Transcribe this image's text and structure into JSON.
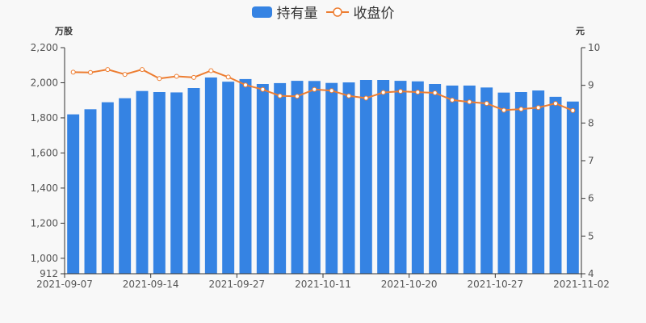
{
  "legend": {
    "bar_label": "持有量",
    "line_label": "收盘价"
  },
  "axes": {
    "left_title": "万股",
    "right_title": "元"
  },
  "colors": {
    "bar": "#3583e3",
    "line": "#ed7d31",
    "axis": "#333333",
    "background": "#f8f8f8"
  },
  "chart_data": {
    "type": "bar+line",
    "title": "",
    "xlabel": "",
    "ylabel_left": "万股",
    "ylabel_right": "元",
    "left_ylim": [
      912,
      2200
    ],
    "left_ticks": [
      912,
      1000,
      1200,
      1400,
      1600,
      1800,
      2000,
      2200
    ],
    "left_tick_labels": [
      "912",
      "1,000",
      "1,200",
      "1,400",
      "1,600",
      "1,800",
      "2,000",
      "2,200"
    ],
    "right_ylim": [
      4,
      10
    ],
    "right_ticks": [
      4,
      5,
      6,
      7,
      8,
      9,
      10
    ],
    "x_tick_labels": [
      "2021-09-07",
      "2021-09-14",
      "2021-09-27",
      "2021-10-11",
      "2021-10-20",
      "2021-10-27",
      "2021-11-02"
    ],
    "x_tick_indices": [
      0,
      5,
      10,
      15,
      20,
      25,
      30
    ],
    "grid": false,
    "legend_position": "top",
    "series": [
      {
        "name": "持有量",
        "type": "bar",
        "axis": "left",
        "values": [
          1820,
          1849,
          1889,
          1912,
          1953,
          1947,
          1945,
          1970,
          2030,
          2006,
          2021,
          1993,
          1998,
          2011,
          2010,
          1999,
          2002,
          2016,
          2016,
          2011,
          2008,
          1993,
          1984,
          1984,
          1973,
          1944,
          1947,
          1956,
          1920,
          1893
        ]
      },
      {
        "name": "收盘价",
        "type": "line",
        "axis": "right",
        "values": [
          9.35,
          9.34,
          9.42,
          9.29,
          9.42,
          9.18,
          9.24,
          9.21,
          9.39,
          9.22,
          9.01,
          8.89,
          8.72,
          8.71,
          8.89,
          8.86,
          8.72,
          8.66,
          8.81,
          8.84,
          8.82,
          8.8,
          8.61,
          8.56,
          8.52,
          8.34,
          8.37,
          8.41,
          8.52,
          8.33
        ]
      }
    ]
  }
}
